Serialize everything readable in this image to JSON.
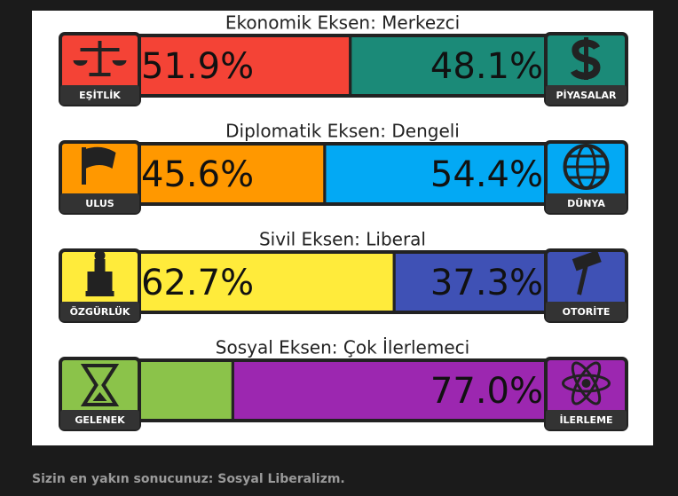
{
  "axes": [
    {
      "title": "Ekonomik Eksen: Merkezci",
      "left": {
        "label": "EŞİTLİK",
        "value": 51.9,
        "value_label": "51.9%",
        "color": "#f44336"
      },
      "right": {
        "label": "PİYASALAR",
        "value": 48.1,
        "value_label": "48.1%",
        "color": "#1b8a78"
      }
    },
    {
      "title": "Diplomatik Eksen: Dengeli",
      "left": {
        "label": "ULUS",
        "value": 45.6,
        "value_label": "45.6%",
        "color": "#ff9800"
      },
      "right": {
        "label": "DÜNYA",
        "value": 54.4,
        "value_label": "54.4%",
        "color": "#03a9f4"
      }
    },
    {
      "title": "Sivil Eksen: Liberal",
      "left": {
        "label": "ÖZGÜRLÜK",
        "value": 62.7,
        "value_label": "62.7%",
        "color": "#ffeb3b"
      },
      "right": {
        "label": "OTORİTE",
        "value": 37.3,
        "value_label": "37.3%",
        "color": "#3f51b5"
      }
    },
    {
      "title": "Sosyal Eksen: Çok İlerlemeci",
      "left": {
        "label": "GELENEK",
        "value": 23.0,
        "color": "#8bc34a"
      },
      "right": {
        "label": "İLERLEME",
        "value": 77.0,
        "value_label": "77.0%",
        "color": "#9c27b0"
      }
    }
  ],
  "caption": "Sizin en yakın sonucunuz: Sosyal Liberalizm."
}
